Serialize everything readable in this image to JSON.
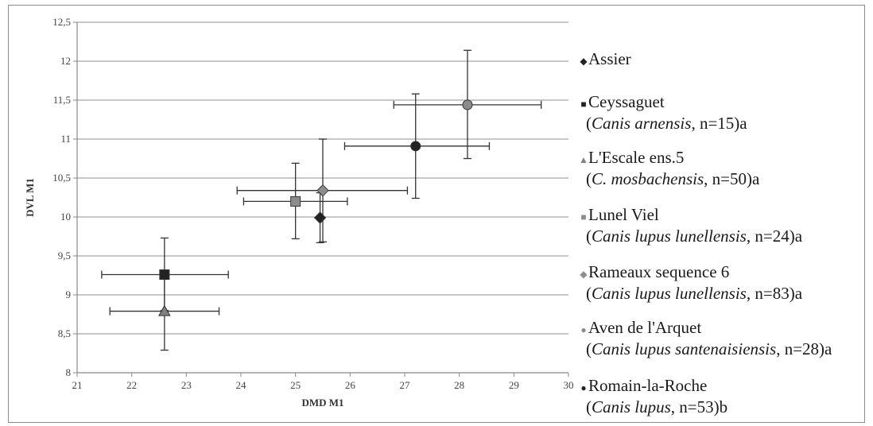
{
  "chart_data": {
    "type": "scatter",
    "xlabel": "DMD M1",
    "ylabel": "DVL M1",
    "xlim": [
      21,
      30
    ],
    "ylim": [
      8,
      12.5
    ],
    "x_ticks": [
      "21",
      "22",
      "23",
      "24",
      "25",
      "26",
      "27",
      "28",
      "29",
      "30"
    ],
    "y_ticks": [
      "8",
      "8,5",
      "9",
      "9,5",
      "10",
      "10,5",
      "11",
      "11,5",
      "12",
      "12,5"
    ],
    "grid": "horizontal",
    "legend_position": "right",
    "series": [
      {
        "name": "Assier",
        "marker": "diamond",
        "color": "#222222",
        "x": 25.45,
        "y": 9.99,
        "x_err": null,
        "y_err": [
          9.67,
          10.31
        ],
        "line1": "Assier",
        "line2": null
      },
      {
        "name": "Ceyssaguet",
        "marker": "square",
        "color": "#222222",
        "x": 22.6,
        "y": 9.26,
        "x_err": [
          21.45,
          23.77
        ],
        "y_err": [
          8.8,
          9.73
        ],
        "line1": "Ceyssaguet",
        "line2": {
          "open": "(",
          "italic": "Canis arnensis",
          "rest": ", n=15)a"
        }
      },
      {
        "name": "L'Escale ens.5",
        "marker": "triangle",
        "color": "#808080",
        "x": 22.6,
        "y": 8.79,
        "x_err": [
          21.6,
          23.6
        ],
        "y_err": [
          8.29,
          9.3
        ],
        "line1": "L'Escale ens.5",
        "line2": {
          "open": "(",
          "italic": "C. mosbachensis",
          "rest": ", n=50)a"
        }
      },
      {
        "name": "Lunel Viel",
        "marker": "square",
        "color": "#8c8c8c",
        "x": 25.0,
        "y": 10.2,
        "x_err": [
          24.05,
          25.95
        ],
        "y_err": [
          9.72,
          10.69
        ],
        "line1": "Lunel Viel",
        "line2": {
          "open": "(",
          "italic": "Canis lupus lunellensis",
          "rest": ", n=24)a"
        }
      },
      {
        "name": "Rameaux sequence 6",
        "marker": "diamond",
        "color": "#8c8c8c",
        "x": 25.5,
        "y": 10.34,
        "x_err": [
          23.93,
          27.05
        ],
        "y_err": [
          9.68,
          11.0
        ],
        "line1": "Rameaux sequence 6",
        "line2": {
          "open": "(",
          "italic": "Canis lupus lunellensis",
          "rest": ", n=83)a"
        }
      },
      {
        "name": "Aven de l'Arquet",
        "marker": "circle",
        "color": "#8c8c8c",
        "x": 28.15,
        "y": 11.44,
        "x_err": [
          26.8,
          29.5
        ],
        "y_err": [
          10.75,
          12.14
        ],
        "line1": "Aven de l'Arquet",
        "line2": {
          "open": "(",
          "italic": "Canis lupus santenaisiensis",
          "rest": ", n=28)a"
        }
      },
      {
        "name": "Romain-la-Roche",
        "marker": "circle",
        "color": "#222222",
        "x": 27.2,
        "y": 10.91,
        "x_err": [
          25.9,
          28.55
        ],
        "y_err": [
          10.24,
          11.58
        ],
        "line1": "Romain-la-Roche",
        "line2": {
          "open": "(",
          "italic": "Canis lupus",
          "rest": ", n=53)b"
        }
      }
    ]
  },
  "legend_symbols": {
    "diamond": "◆",
    "square": "■",
    "triangle": "▲",
    "circle": "●"
  }
}
